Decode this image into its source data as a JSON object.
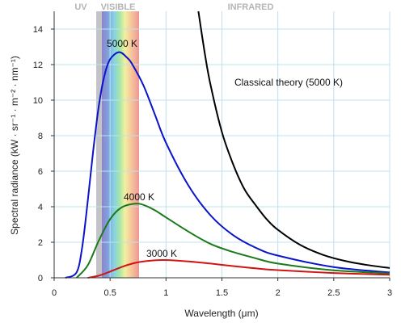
{
  "chart_data": {
    "type": "line",
    "xlabel": "Wavelength (μm)",
    "ylabel": "Spectral radiance (kW · sr⁻¹ · m⁻² · nm⁻¹)",
    "xlim": [
      0,
      3
    ],
    "ylim": [
      0,
      15
    ],
    "x_ticks": [
      0,
      0.5,
      1,
      1.5,
      2,
      2.5,
      3
    ],
    "x_tick_labels": [
      "0",
      "0.5",
      "1",
      "1.5",
      "2",
      "2.5",
      "3"
    ],
    "y_ticks": [
      0,
      2,
      4,
      6,
      8,
      10,
      12,
      14
    ],
    "y_tick_labels": [
      "0",
      "2",
      "4",
      "6",
      "8",
      "10",
      "12",
      "14"
    ],
    "grid": true,
    "regions": [
      {
        "label": "UV",
        "x_start": 0,
        "x_end": 0.38
      },
      {
        "label": "VISIBLE",
        "x_start": 0.38,
        "x_end": 0.75
      },
      {
        "label": "INFRARED",
        "x_start": 0.75,
        "x_end": 3
      }
    ],
    "series": [
      {
        "name": "5000 K",
        "color": "#0a14c8",
        "x": [
          0.1,
          0.2,
          0.25,
          0.3,
          0.35,
          0.4,
          0.45,
          0.5,
          0.58,
          0.65,
          0.7,
          0.8,
          0.9,
          1.0,
          1.2,
          1.4,
          1.6,
          1.8,
          2.0,
          2.5,
          3.0
        ],
        "y": [
          0.0,
          0.3,
          1.7,
          4.3,
          7.2,
          9.7,
          11.4,
          12.3,
          12.7,
          12.4,
          12.0,
          10.8,
          9.2,
          7.6,
          5.2,
          3.5,
          2.4,
          1.7,
          1.25,
          0.6,
          0.3
        ]
      },
      {
        "name": "4000 K",
        "color": "#1a7a1a",
        "x": [
          0.2,
          0.3,
          0.4,
          0.5,
          0.6,
          0.72,
          0.8,
          0.9,
          1.0,
          1.2,
          1.4,
          1.6,
          1.8,
          2.0,
          2.5,
          3.0
        ],
        "y": [
          0.0,
          0.7,
          2.1,
          3.3,
          3.95,
          4.17,
          4.1,
          3.8,
          3.4,
          2.6,
          1.9,
          1.45,
          1.1,
          0.8,
          0.42,
          0.25
        ]
      },
      {
        "name": "3000 K",
        "color": "#d01414",
        "x": [
          0.3,
          0.4,
          0.5,
          0.6,
          0.7,
          0.8,
          0.9,
          0.97,
          1.1,
          1.2,
          1.4,
          1.6,
          1.8,
          2.0,
          2.5,
          3.0
        ],
        "y": [
          0.0,
          0.12,
          0.35,
          0.6,
          0.8,
          0.92,
          0.98,
          1.0,
          0.97,
          0.92,
          0.8,
          0.66,
          0.53,
          0.43,
          0.27,
          0.17
        ]
      },
      {
        "name": "Classical theory (5000 K)",
        "color": "#000000",
        "x": [
          1.29,
          1.35,
          1.4,
          1.5,
          1.6,
          1.7,
          1.8,
          1.9,
          2.0,
          2.2,
          2.4,
          2.6,
          2.8,
          3.0
        ],
        "y": [
          15.0,
          12.5,
          10.8,
          8.2,
          6.4,
          5.0,
          4.1,
          3.3,
          2.7,
          1.85,
          1.3,
          0.95,
          0.72,
          0.55
        ]
      }
    ]
  }
}
